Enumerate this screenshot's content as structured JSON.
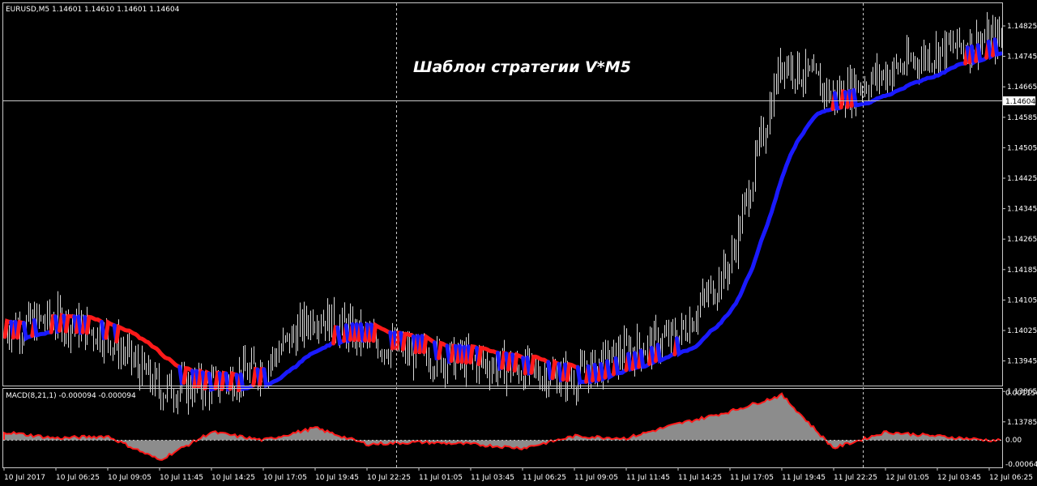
{
  "header": {
    "symbol_info": "EURUSD,M5  1.14601 1.14610 1.14601 1.14604",
    "strategy_title": "Шаблон стратегии V*M5"
  },
  "indicator": {
    "label": "MACD(8,21,1) -0.000094 -0.000094",
    "axis_labels": [
      "0.001154",
      "0.00",
      "-0.000645"
    ]
  },
  "price_axis": {
    "labels": [
      "1.14825",
      "1.14745",
      "1.14665",
      "1.14585",
      "1.14505",
      "1.14425",
      "1.14345",
      "1.14265",
      "1.14185",
      "1.14105",
      "1.14025",
      "1.13945",
      "1.13865",
      "1.13785"
    ],
    "current_price": "1.14604"
  },
  "time_axis": {
    "labels": [
      "10 Jul 2017",
      "10 Jul 06:25",
      "10 Jul 09:05",
      "10 Jul 11:45",
      "10 Jul 14:25",
      "10 Jul 17:05",
      "10 Jul 19:45",
      "10 Jul 22:25",
      "11 Jul 01:05",
      "11 Jul 03:45",
      "11 Jul 06:25",
      "11 Jul 09:05",
      "11 Jul 11:45",
      "11 Jul 14:25",
      "11 Jul 17:05",
      "11 Jul 19:45",
      "11 Jul 22:25",
      "12 Jul 01:05",
      "12 Jul 03:45",
      "12 Jul 06:25"
    ]
  },
  "colors": {
    "background": "#000000",
    "bars": "#d8d8d8",
    "trend_down": "#ff1a1a",
    "trend_up": "#1a1aff",
    "macd_hist": "#8c8c8c",
    "macd_signal": "#ff1a1a",
    "grid": "#c8c8c8"
  },
  "chart_data": {
    "type": "line",
    "x": [
      "10 Jul 2017",
      "10 Jul 06:25",
      "10 Jul 09:05",
      "10 Jul 11:45",
      "10 Jul 14:25",
      "10 Jul 17:05",
      "10 Jul 19:45",
      "10 Jul 22:25",
      "11 Jul 01:05",
      "11 Jul 03:45",
      "11 Jul 06:25",
      "11 Jul 09:05",
      "11 Jul 11:45",
      "11 Jul 14:25",
      "11 Jul 17:05",
      "11 Jul 19:45",
      "11 Jul 22:25",
      "12 Jul 01:05",
      "12 Jul 03:45",
      "12 Jul 06:25"
    ],
    "price": [
      1.1403,
      1.14055,
      1.1401,
      1.1387,
      1.1388,
      1.1393,
      1.1407,
      1.14,
      1.1396,
      1.13945,
      1.1392,
      1.139,
      1.1397,
      1.1401,
      1.142,
      1.1474,
      1.1464,
      1.147,
      1.1476,
      1.1479
    ],
    "macd": [
      0.0002,
      5e-05,
      0.0001,
      -0.0005,
      0.0002,
      0.0,
      0.0003,
      -0.0001,
      -5e-05,
      -0.0001,
      -0.0002,
      0.0001,
      5e-05,
      0.0004,
      0.0007,
      0.0011,
      -0.0002,
      0.0002,
      0.0001,
      0.0
    ],
    "ylim": [
      1.13785,
      1.14885
    ],
    "macd_ylim": [
      -0.000645,
      0.001154
    ]
  }
}
